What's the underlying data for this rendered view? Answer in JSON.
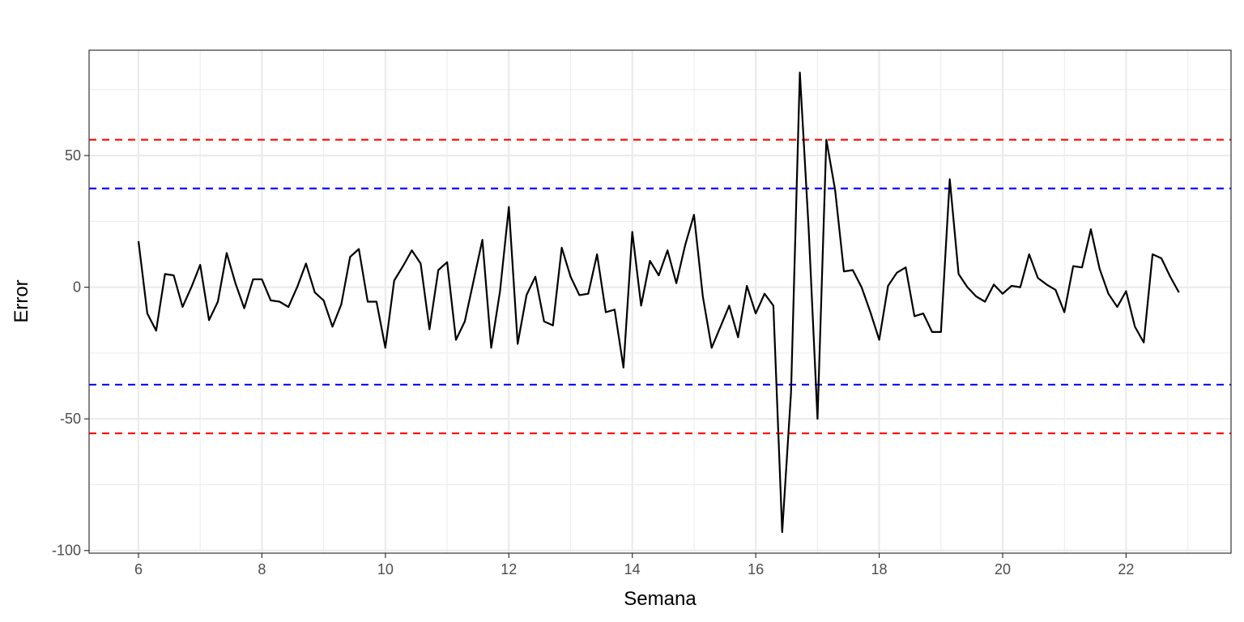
{
  "chart_data": {
    "type": "line",
    "title": "",
    "xlabel": "Semana",
    "ylabel": "Error",
    "xlim": [
      5.2,
      23.7
    ],
    "ylim": [
      -101,
      90
    ],
    "x_ticks": [
      6,
      8,
      10,
      12,
      14,
      16,
      18,
      20,
      22
    ],
    "y_ticks": [
      -100,
      -50,
      0,
      50
    ],
    "x_minor_ticks": [
      7,
      9,
      11,
      13,
      15,
      17,
      19,
      21,
      23
    ],
    "y_minor_ticks": [
      -75,
      -25,
      25,
      75
    ],
    "grid": true,
    "legend": "none",
    "colors": {
      "line": "#000000",
      "inner_limits": "#0000ff",
      "outer_limits": "#ff0000",
      "grid": "#ebebeb",
      "panel_border": "#333333"
    },
    "reference_lines": [
      {
        "y": 56,
        "style": "dashed",
        "color": "#ff0000"
      },
      {
        "y": 37.5,
        "style": "dashed",
        "color": "#0000ff"
      },
      {
        "y": -37,
        "style": "dashed",
        "color": "#0000ff"
      },
      {
        "y": -55.5,
        "style": "dashed",
        "color": "#ff0000"
      }
    ],
    "series": [
      {
        "x": [
          6.0,
          6.143,
          6.286,
          6.429,
          6.571,
          6.714,
          6.857,
          7.0,
          7.143,
          7.286,
          7.429,
          7.571,
          7.714,
          7.857,
          8.0,
          8.143,
          8.286,
          8.429,
          8.571,
          8.714,
          8.857,
          9.0,
          9.143,
          9.286,
          9.429,
          9.571,
          9.714,
          9.857,
          10.0,
          10.143,
          10.286,
          10.429,
          10.571,
          10.714,
          10.857,
          11.0,
          11.143,
          11.286,
          11.429,
          11.571,
          11.714,
          11.857,
          12.0,
          12.143,
          12.286,
          12.429,
          12.571,
          12.714,
          12.857,
          13.0,
          13.143,
          13.286,
          13.429,
          13.571,
          13.714,
          13.857,
          14.0,
          14.143,
          14.286,
          14.429,
          14.571,
          14.714,
          14.857,
          15.0,
          15.143,
          15.286,
          15.429,
          15.571,
          15.714,
          15.857,
          16.0,
          16.143,
          16.286,
          16.429,
          16.571,
          16.714,
          16.857,
          17.0,
          17.143,
          17.286,
          17.429,
          17.571,
          17.714,
          17.857,
          18.0,
          18.143,
          18.286,
          18.429,
          18.571,
          18.714,
          18.857,
          19.0,
          19.143,
          19.286,
          19.429,
          19.571,
          19.714,
          19.857,
          20.0,
          20.143,
          20.286,
          20.429,
          20.571,
          20.714,
          20.857,
          21.0,
          21.143,
          21.286,
          21.429,
          21.571,
          21.714,
          21.857,
          22.0,
          22.143,
          22.286,
          22.429,
          22.571,
          22.714,
          22.857
        ],
        "values": [
          17.5,
          -10,
          -16.5,
          5,
          4.5,
          -7.5,
          0,
          8.5,
          -12.5,
          -5.5,
          13,
          1.5,
          -8,
          3,
          3,
          -5,
          -5.5,
          -7.5,
          0,
          9,
          -2,
          -5,
          -15,
          -6.5,
          11.5,
          14.5,
          -5.5,
          -5.5,
          -23,
          2.5,
          8,
          14,
          9,
          -16,
          6.5,
          9.5,
          -20,
          -13,
          2.5,
          18,
          -23,
          -1.5,
          30.5,
          -21.5,
          -3,
          4,
          -13,
          -14.5,
          15,
          4,
          -3,
          -2.5,
          12.5,
          -9.5,
          -8.5,
          -30.5,
          21,
          -7,
          10,
          4.5,
          14,
          1.5,
          16,
          27.5,
          -3.5,
          -23,
          -15,
          -7,
          -19,
          0.5,
          -10,
          -2.5,
          -7,
          -93,
          -40,
          81.5,
          22,
          -50,
          56,
          37,
          6,
          6.5,
          0,
          -9.5,
          -20,
          0.5,
          5.5,
          7.5,
          -11,
          -10,
          -17,
          -17,
          41,
          5,
          0,
          -3.5,
          -5.5,
          1,
          -2.5,
          0.5,
          0,
          12.5,
          3.5,
          1,
          -1,
          -9.5,
          8,
          7.5,
          22,
          7,
          -2.5,
          -7.5,
          -1.5,
          -15,
          -21,
          12.5,
          11,
          4,
          -2
        ]
      }
    ]
  }
}
